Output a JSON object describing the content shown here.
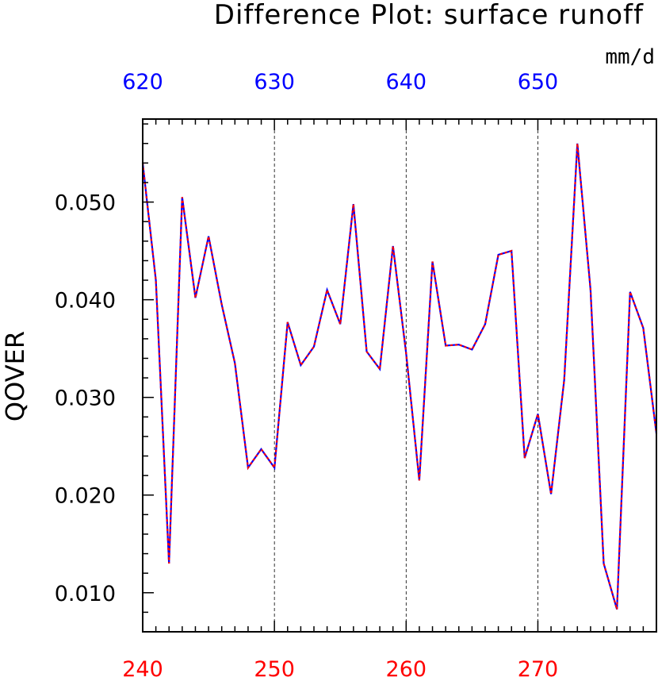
{
  "chart_data": {
    "type": "line",
    "title": "Difference Plot: surface runoff",
    "units": "mm/d",
    "ylabel": "QOVER",
    "xlim": [
      240,
      279
    ],
    "ylim": [
      0.006,
      0.0585
    ],
    "grid": "vertical dashed at labeled x ticks",
    "x_bottom_ticks": [
      240,
      250,
      260,
      270
    ],
    "x_bottom_tick_labels": [
      "240",
      "250",
      "260",
      "270"
    ],
    "x_top_tick_labels": [
      "620",
      "630",
      "640",
      "650"
    ],
    "y_ticks": [
      0.01,
      0.02,
      0.03,
      0.04,
      0.05
    ],
    "y_tick_labels": [
      "0.010",
      "0.020",
      "0.030",
      "0.040",
      "0.050"
    ],
    "colors": {
      "bottom_axis": "#ff0000",
      "top_axis": "#0000ff",
      "series_1": "#0000ff",
      "series_2": "#ff0000"
    },
    "x": [
      240,
      241,
      242,
      243,
      244,
      245,
      246,
      247,
      248,
      249,
      250,
      251,
      252,
      253,
      254,
      255,
      256,
      257,
      258,
      259,
      260,
      261,
      262,
      263,
      264,
      265,
      266,
      267,
      268,
      269,
      270,
      271,
      272,
      273,
      274,
      275,
      276,
      277,
      278,
      279
    ],
    "series": [
      {
        "values": [
          0.054,
          0.042,
          0.013,
          0.0505,
          0.0402,
          0.0465,
          0.0395,
          0.0335,
          0.0228,
          0.0247,
          0.0228,
          0.0377,
          0.0333,
          0.0352,
          0.041,
          0.0375,
          0.0498,
          0.0347,
          0.0329,
          0.0455,
          0.0345,
          0.0215,
          0.0439,
          0.0353,
          0.0354,
          0.0349,
          0.0375,
          0.0446,
          0.045,
          0.0238,
          0.0283,
          0.0201,
          0.0318,
          0.056,
          0.041,
          0.013,
          0.0083,
          0.0408,
          0.0371,
          0.0263
        ]
      },
      {
        "values": [
          0.054,
          0.042,
          0.013,
          0.0505,
          0.0402,
          0.0465,
          0.0395,
          0.0335,
          0.0228,
          0.0247,
          0.0228,
          0.0377,
          0.0333,
          0.0352,
          0.041,
          0.0375,
          0.0498,
          0.0347,
          0.0329,
          0.0455,
          0.0345,
          0.0215,
          0.0439,
          0.0353,
          0.0354,
          0.0349,
          0.0375,
          0.0446,
          0.045,
          0.0238,
          0.0283,
          0.0201,
          0.0318,
          0.056,
          0.041,
          0.013,
          0.0083,
          0.0408,
          0.0371,
          0.0263
        ]
      }
    ]
  }
}
